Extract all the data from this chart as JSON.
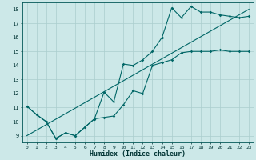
{
  "bg_color": "#cce8e8",
  "grid_color": "#aacece",
  "line_color": "#006666",
  "xlabel": "Humidex (Indice chaleur)",
  "xlim": [
    -0.5,
    23.5
  ],
  "ylim": [
    8.5,
    18.5
  ],
  "xticks": [
    0,
    1,
    2,
    3,
    4,
    5,
    6,
    7,
    8,
    9,
    10,
    11,
    12,
    13,
    14,
    15,
    16,
    17,
    18,
    19,
    20,
    21,
    22,
    23
  ],
  "yticks": [
    9,
    10,
    11,
    12,
    13,
    14,
    15,
    16,
    17,
    18
  ],
  "series1_x": [
    0,
    1,
    2,
    3,
    4,
    5,
    6,
    7,
    8,
    9,
    10,
    11,
    12,
    13,
    14,
    15,
    16,
    17,
    18,
    19,
    20,
    21,
    22,
    23
  ],
  "series1_y": [
    11.1,
    10.5,
    10.0,
    8.8,
    9.2,
    9.0,
    9.6,
    10.2,
    10.3,
    10.4,
    11.2,
    12.2,
    12.0,
    14.0,
    14.2,
    14.4,
    14.9,
    15.0,
    15.0,
    15.0,
    15.1,
    15.0,
    15.0,
    15.0
  ],
  "series2_x": [
    0,
    1,
    2,
    3,
    4,
    5,
    6,
    7,
    8,
    9,
    10,
    11,
    12,
    13,
    14,
    15,
    16,
    17,
    18,
    19,
    20,
    21,
    22,
    23
  ],
  "series2_y": [
    11.1,
    10.5,
    10.0,
    8.8,
    9.2,
    9.0,
    9.6,
    10.2,
    12.1,
    11.4,
    14.1,
    14.0,
    14.4,
    15.0,
    16.0,
    18.1,
    17.4,
    18.2,
    17.8,
    17.8,
    17.6,
    17.5,
    17.4,
    17.5
  ],
  "series3_x": [
    0,
    23
  ],
  "series3_y": [
    9.0,
    18.0
  ]
}
